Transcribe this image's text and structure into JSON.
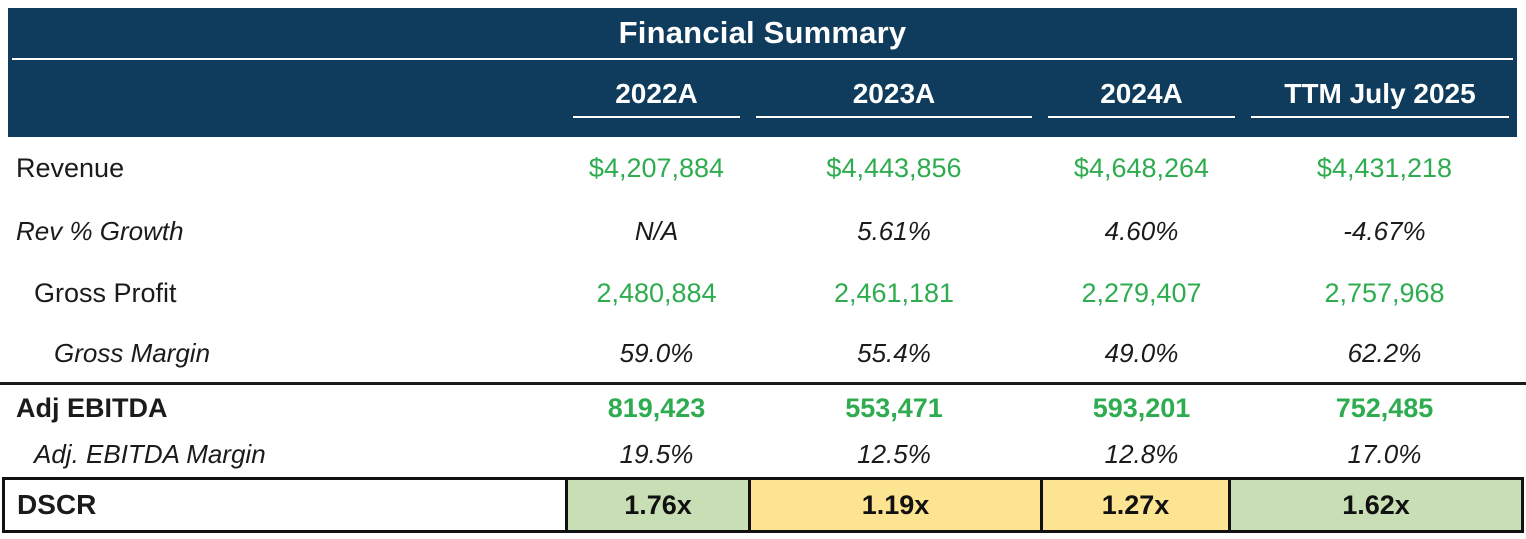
{
  "table": {
    "title": "Financial Summary",
    "columns": [
      "2022A",
      "2023A",
      "2024A",
      "TTM July 2025"
    ],
    "rows": [
      {
        "label": "Revenue",
        "values": [
          "$4,207,884",
          "$4,443,856",
          "$4,648,264",
          "$4,431,218"
        ]
      },
      {
        "label": "Rev % Growth",
        "values": [
          "N/A",
          "5.61%",
          "4.60%",
          "-4.67%"
        ]
      },
      {
        "label": "Gross Profit",
        "values": [
          "2,480,884",
          "2,461,181",
          "2,279,407",
          "2,757,968"
        ]
      },
      {
        "label": "Gross Margin",
        "values": [
          "59.0%",
          "55.4%",
          "49.0%",
          "62.2%"
        ]
      },
      {
        "label": "Adj EBITDA",
        "values": [
          "819,423",
          "553,471",
          "593,201",
          "752,485"
        ]
      },
      {
        "label": "Adj. EBITDA Margin",
        "values": [
          "19.5%",
          "12.5%",
          "12.8%",
          "17.0%"
        ]
      }
    ],
    "dscr": {
      "label": "DSCR",
      "values": [
        {
          "text": "1.76x",
          "status": "green"
        },
        {
          "text": "1.19x",
          "status": "yellow"
        },
        {
          "text": "1.27x",
          "status": "yellow"
        },
        {
          "text": "1.62x",
          "status": "green"
        }
      ]
    },
    "colors": {
      "header_background": "#0f3c5d",
      "positive_value_text": "#2eac4f",
      "dscr_good_cell": "#c8dfb5",
      "dscr_warning_cell": "#fce492"
    }
  }
}
